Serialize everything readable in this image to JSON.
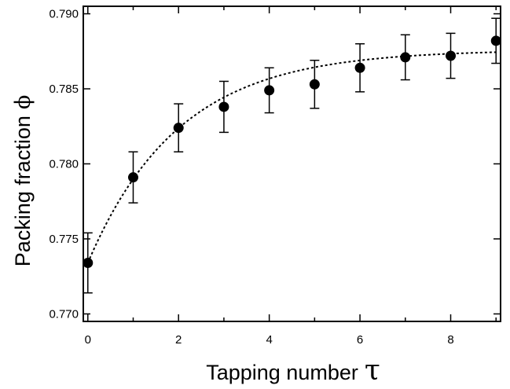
{
  "chart_data": {
    "type": "scatter",
    "xlabel": "Tapping number",
    "xlabel_symbol": "τ",
    "ylabel": "Packing fraction",
    "ylabel_symbol": "ϕ",
    "xlim": [
      -0.1,
      9.1
    ],
    "ylim": [
      0.7695,
      0.7905
    ],
    "x_ticks": [
      0,
      2,
      4,
      6,
      8
    ],
    "x_tick_labels": [
      "0",
      "2",
      "4",
      "6",
      "8"
    ],
    "x_minor_ticks": [
      1,
      3,
      5,
      7,
      9
    ],
    "y_ticks": [
      0.77,
      0.775,
      0.78,
      0.785,
      0.79
    ],
    "y_tick_labels": [
      "0.770",
      "0.775",
      "0.780",
      "0.785",
      "0.790"
    ],
    "grid": false,
    "legend": "none",
    "marker_color": "#000000",
    "series": [
      {
        "x": [
          0,
          1,
          2,
          3,
          4,
          5,
          6,
          7,
          8,
          9
        ],
        "y": [
          0.7734,
          0.7791,
          0.7824,
          0.7838,
          0.7849,
          0.7853,
          0.7864,
          0.7871,
          0.7872,
          0.7882
        ],
        "error": [
          0.002,
          0.0017,
          0.0016,
          0.0017,
          0.0015,
          0.0016,
          0.0016,
          0.0015,
          0.0015,
          0.0015
        ]
      }
    ],
    "fit_curve": {
      "style": "dotted",
      "form": "exponential saturation",
      "y_inf": 0.7876,
      "amplitude": 0.0142,
      "tau_c": 2.0
    }
  }
}
